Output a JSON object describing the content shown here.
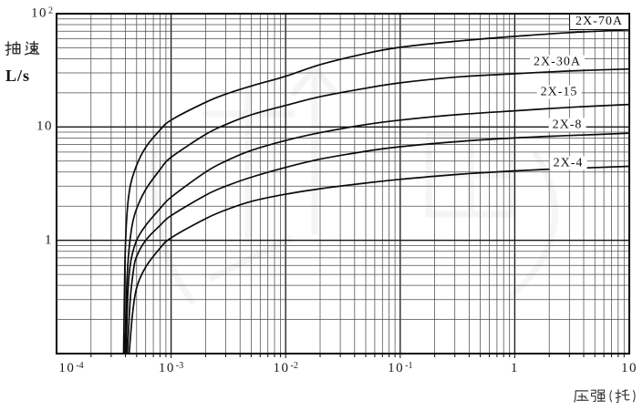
{
  "watermark": {
    "visible": true,
    "legible": false
  },
  "chart_data": {
    "type": "line",
    "x_scale": "log",
    "y_scale": "log",
    "xlabel": "压强(托)",
    "ylabel": "抽速",
    "ylabel_unit": "L/s",
    "xlim": [
      0.0001,
      10
    ],
    "ylim": [
      0.1,
      100
    ],
    "grid": "log major and minor gridlines on both axes",
    "legend_position": "inline labels at right side of curves, 2X-70A boxed at top-right",
    "x_ticks": [
      {
        "value": 0.0001,
        "base": "10",
        "exp": "-4",
        "label": "10^-4"
      },
      {
        "value": 0.001,
        "base": "10",
        "exp": "-3",
        "label": "10^-3"
      },
      {
        "value": 0.01,
        "base": "10",
        "exp": "-2",
        "label": "10^-2"
      },
      {
        "value": 0.1,
        "base": "10",
        "exp": "-1",
        "label": "10^-1"
      },
      {
        "value": 1,
        "base": "1",
        "exp": "",
        "label": "1"
      },
      {
        "value": 10,
        "base": "10",
        "exp": "",
        "label": "10"
      }
    ],
    "y_ticks": [
      {
        "value": 100,
        "base": "10",
        "exp": "2",
        "label": "10^2"
      },
      {
        "value": 10,
        "base": "10",
        "exp": "",
        "label": "10"
      },
      {
        "value": 1,
        "base": "1",
        "exp": "",
        "label": "1"
      }
    ],
    "series": [
      {
        "name": "2X-70A",
        "boxed_label": true,
        "points": [
          [
            0.000385,
            0.1
          ],
          [
            0.000395,
            0.6
          ],
          [
            0.00041,
            1.6
          ],
          [
            0.00044,
            3.0
          ],
          [
            0.0005,
            4.6
          ],
          [
            0.0006,
            6.6
          ],
          [
            0.0008,
            9.4
          ],
          [
            0.001,
            11.5
          ],
          [
            0.002,
            16.5
          ],
          [
            0.003,
            19.5
          ],
          [
            0.005,
            23
          ],
          [
            0.01,
            28
          ],
          [
            0.02,
            35.5
          ],
          [
            0.05,
            44.5
          ],
          [
            0.1,
            50.5
          ],
          [
            0.3,
            57
          ],
          [
            1,
            63
          ],
          [
            3,
            68
          ],
          [
            10,
            72
          ]
        ]
      },
      {
        "name": "2X-30A",
        "boxed_label": false,
        "points": [
          [
            0.000395,
            0.1
          ],
          [
            0.00041,
            0.4
          ],
          [
            0.00043,
            0.85
          ],
          [
            0.00046,
            1.4
          ],
          [
            0.0005,
            1.9
          ],
          [
            0.0006,
            2.8
          ],
          [
            0.0008,
            4.2
          ],
          [
            0.001,
            5.4
          ],
          [
            0.002,
            8.6
          ],
          [
            0.003,
            10.5
          ],
          [
            0.005,
            12.8
          ],
          [
            0.01,
            15.5
          ],
          [
            0.02,
            18.5
          ],
          [
            0.05,
            22
          ],
          [
            0.1,
            24.5
          ],
          [
            0.3,
            27.5
          ],
          [
            1,
            29.5
          ],
          [
            3,
            31.2
          ],
          [
            10,
            32.5
          ]
        ]
      },
      {
        "name": "2X-15",
        "boxed_label": false,
        "points": [
          [
            0.000405,
            0.1
          ],
          [
            0.00042,
            0.35
          ],
          [
            0.000445,
            0.65
          ],
          [
            0.0005,
            1.0
          ],
          [
            0.0006,
            1.35
          ],
          [
            0.0008,
            1.9
          ],
          [
            0.001,
            2.4
          ],
          [
            0.002,
            4.0
          ],
          [
            0.003,
            5.0
          ],
          [
            0.005,
            6.2
          ],
          [
            0.01,
            7.6
          ],
          [
            0.02,
            8.9
          ],
          [
            0.05,
            10.5
          ],
          [
            0.1,
            11.5
          ],
          [
            0.3,
            12.8
          ],
          [
            1,
            13.9
          ],
          [
            3,
            14.9
          ],
          [
            10,
            15.8
          ]
        ]
      },
      {
        "name": "2X-8",
        "boxed_label": false,
        "points": [
          [
            0.000415,
            0.1
          ],
          [
            0.00044,
            0.3
          ],
          [
            0.00047,
            0.55
          ],
          [
            0.0005,
            0.72
          ],
          [
            0.0006,
            1.0
          ],
          [
            0.0008,
            1.35
          ],
          [
            0.001,
            1.65
          ],
          [
            0.002,
            2.5
          ],
          [
            0.003,
            3.0
          ],
          [
            0.005,
            3.6
          ],
          [
            0.01,
            4.4
          ],
          [
            0.02,
            5.2
          ],
          [
            0.05,
            6.1
          ],
          [
            0.1,
            6.7
          ],
          [
            0.3,
            7.4
          ],
          [
            1,
            8.0
          ],
          [
            3,
            8.4
          ],
          [
            10,
            8.8
          ]
        ]
      },
      {
        "name": "2X-4",
        "boxed_label": false,
        "points": [
          [
            0.00043,
            0.1
          ],
          [
            0.00046,
            0.22
          ],
          [
            0.0005,
            0.38
          ],
          [
            0.0006,
            0.58
          ],
          [
            0.0008,
            0.85
          ],
          [
            0.001,
            1.05
          ],
          [
            0.002,
            1.55
          ],
          [
            0.003,
            1.85
          ],
          [
            0.005,
            2.2
          ],
          [
            0.01,
            2.55
          ],
          [
            0.02,
            2.85
          ],
          [
            0.05,
            3.2
          ],
          [
            0.1,
            3.45
          ],
          [
            0.3,
            3.8
          ],
          [
            1,
            4.1
          ],
          [
            3,
            4.3
          ],
          [
            10,
            4.5
          ]
        ]
      }
    ]
  }
}
